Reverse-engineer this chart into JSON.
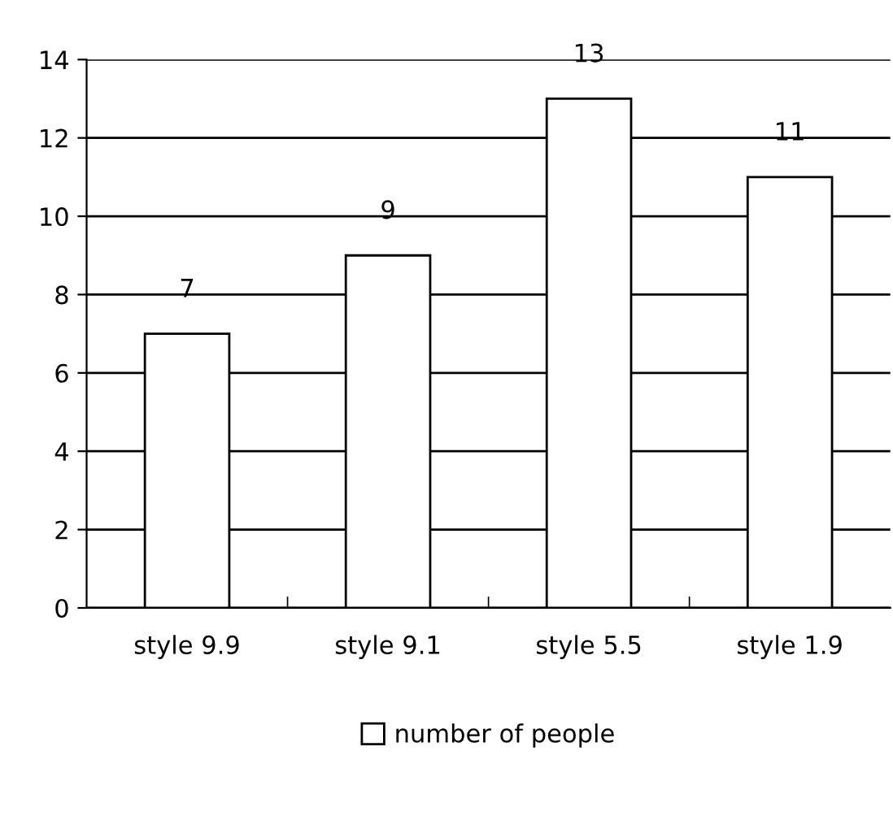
{
  "chart_data": {
    "type": "bar",
    "categories": [
      "style 9.9",
      "style 9.1",
      "style 5.5",
      "style 1.9"
    ],
    "series": [
      {
        "name": "number of people",
        "color": "#ffffff",
        "values": [
          7,
          9,
          13,
          11
        ]
      }
    ],
    "ylim": [
      0,
      14
    ],
    "yticks": [
      0,
      2,
      4,
      6,
      8,
      10,
      12,
      14
    ],
    "grid": "y",
    "data_labels": true,
    "legend": "bottom"
  }
}
